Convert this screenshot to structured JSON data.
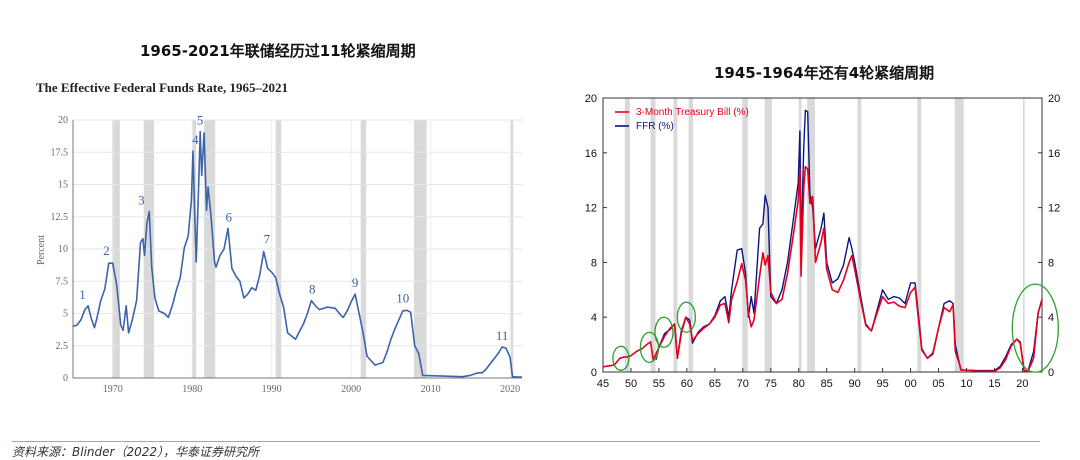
{
  "left_title": "1965-2021年联储经历过11轮紧缩周期",
  "right_title": "1945-1964年还有4轮紧缩周期",
  "source": "资料来源：Blinder（2022），华泰证券研究所",
  "colors": {
    "ffr_left": "#3d63a8",
    "tbill": "#e6001f",
    "ffr_right": "#0b1680",
    "recession": "#d9d9d9",
    "highlight": "#2ca02c"
  },
  "chart_data": [
    {
      "type": "line",
      "title": "The Effective Federal Funds Rate, 1965–2021",
      "ylabel": "Percent",
      "xlim": [
        1965,
        2021.5
      ],
      "ylim": [
        0,
        20
      ],
      "x_ticks": [
        "1970",
        "1980",
        "1990",
        "2000",
        "2010",
        "2020"
      ],
      "y_ticks": [
        "0",
        "2.5",
        "5",
        "7.5",
        "10",
        "12.5",
        "15",
        "17.5",
        "20"
      ],
      "grid": true,
      "recessions": [
        [
          1969.9,
          1970.9
        ],
        [
          1973.9,
          1975.2
        ],
        [
          1980.0,
          1980.5
        ],
        [
          1981.5,
          1982.9
        ],
        [
          1990.5,
          1991.2
        ],
        [
          2001.2,
          2001.9
        ],
        [
          2007.9,
          2009.5
        ],
        [
          2020.1,
          2020.4
        ]
      ],
      "cycle_labels": [
        {
          "label": "1",
          "x": 1966.2,
          "y": 5.6
        },
        {
          "label": "2",
          "x": 1969.2,
          "y": 9.0
        },
        {
          "label": "3",
          "x": 1973.6,
          "y": 12.9
        },
        {
          "label": "4",
          "x": 1980.4,
          "y": 17.6
        },
        {
          "label": "5",
          "x": 1981.0,
          "y": 19.1
        },
        {
          "label": "6",
          "x": 1984.6,
          "y": 11.6
        },
        {
          "label": "7",
          "x": 1989.4,
          "y": 9.9
        },
        {
          "label": "8",
          "x": 1995.1,
          "y": 6.0
        },
        {
          "label": "9",
          "x": 2000.5,
          "y": 6.5
        },
        {
          "label": "10",
          "x": 2006.5,
          "y": 5.3
        },
        {
          "label": "11",
          "x": 2019.0,
          "y": 2.4
        }
      ],
      "series": [
        {
          "x": [
            1965,
            1965.5,
            1966,
            1966.5,
            1966.9,
            1967.3,
            1967.7,
            1968,
            1968.5,
            1969,
            1969.5,
            1970,
            1970.5,
            1971,
            1971.3,
            1971.7,
            1972,
            1972.5,
            1973,
            1973.5,
            1973.8,
            1974,
            1974.3,
            1974.6,
            1974.9,
            1975.3,
            1975.8,
            1976.5,
            1977,
            1977.5,
            1978,
            1978.5,
            1979,
            1979.5,
            1979.9,
            1980.1,
            1980.3,
            1980.5,
            1980.8,
            1981,
            1981.2,
            1981.5,
            1981.8,
            1982,
            1982.4,
            1982.8,
            1983,
            1983.5,
            1984,
            1984.5,
            1985,
            1985.5,
            1986,
            1986.5,
            1987,
            1987.5,
            1988,
            1988.5,
            1989,
            1989.5,
            1990,
            1990.5,
            1991,
            1991.5,
            1992,
            1993,
            1994,
            1994.5,
            1995,
            1995.5,
            1996,
            1997,
            1998,
            1998.8,
            1999,
            1999.5,
            2000,
            2000.5,
            2001,
            2001.5,
            2002,
            2003,
            2004,
            2004.5,
            2005,
            2005.5,
            2006,
            2006.5,
            2007,
            2007.5,
            2008,
            2008.5,
            2009,
            2010,
            2012,
            2014,
            2015,
            2016,
            2016.5,
            2017,
            2017.5,
            2018,
            2018.5,
            2019,
            2019.5,
            2020,
            2020.3,
            2021,
            2021.5
          ],
          "y": [
            4.0,
            4.1,
            4.5,
            5.3,
            5.6,
            4.6,
            3.9,
            4.6,
            6.0,
            6.9,
            8.9,
            8.9,
            7.2,
            4.1,
            3.7,
            5.6,
            3.5,
            4.6,
            6.0,
            10.5,
            10.8,
            9.5,
            12.0,
            12.9,
            8.6,
            6.2,
            5.2,
            5.0,
            4.7,
            5.6,
            6.8,
            7.8,
            10.1,
            11.0,
            13.8,
            17.6,
            13.0,
            9.0,
            14.8,
            19.1,
            15.7,
            19.0,
            13.0,
            14.8,
            12.3,
            9.0,
            8.6,
            9.5,
            10.0,
            11.6,
            8.5,
            7.9,
            7.5,
            6.2,
            6.5,
            7.0,
            6.8,
            8.0,
            9.8,
            8.5,
            8.2,
            7.8,
            6.5,
            5.5,
            3.5,
            3.0,
            4.2,
            5.0,
            6.0,
            5.6,
            5.3,
            5.5,
            5.4,
            4.8,
            4.7,
            5.2,
            5.9,
            6.5,
            5.0,
            3.5,
            1.7,
            1.0,
            1.2,
            2.0,
            3.0,
            3.8,
            4.5,
            5.2,
            5.25,
            5.1,
            2.5,
            1.9,
            0.2,
            0.18,
            0.14,
            0.1,
            0.2,
            0.4,
            0.4,
            0.7,
            1.1,
            1.5,
            1.9,
            2.4,
            2.3,
            1.6,
            0.1,
            0.08,
            0.08
          ]
        }
      ]
    },
    {
      "type": "line",
      "title": "",
      "xlim": [
        1945,
        2023.5
      ],
      "ylim": [
        0,
        20
      ],
      "x_ticks": [
        "45",
        "50",
        "55",
        "60",
        "65",
        "70",
        "75",
        "80",
        "85",
        "90",
        "95",
        "00",
        "05",
        "10",
        "15",
        "20"
      ],
      "y_ticks": [
        "0",
        "4",
        "8",
        "12",
        "16",
        "20"
      ],
      "y2_ticks": [
        "0",
        "4",
        "8",
        "12",
        "16",
        "20"
      ],
      "legend_position": "top-left",
      "recessions": [
        [
          1948.9,
          1949.8
        ],
        [
          1953.5,
          1954.4
        ],
        [
          1957.6,
          1958.3
        ],
        [
          1960.3,
          1961.1
        ],
        [
          1969.9,
          1970.9
        ],
        [
          1973.9,
          1975.2
        ],
        [
          1980.0,
          1980.5
        ],
        [
          1981.5,
          1982.9
        ],
        [
          1990.5,
          1991.2
        ],
        [
          2001.2,
          2001.9
        ],
        [
          2007.9,
          2009.5
        ],
        [
          2020.1,
          2020.4
        ]
      ],
      "series": [
        {
          "name": "3-Month Treasury Bill (%)",
          "x": [
            1945,
            1947,
            1948,
            1948.8,
            1949.5,
            1950,
            1951,
            1952,
            1952.8,
            1953.5,
            1954,
            1955,
            1956,
            1957,
            1957.8,
            1958.3,
            1959,
            1959.8,
            1960.5,
            1961,
            1962,
            1963,
            1964,
            1965,
            1966,
            1966.8,
            1967.5,
            1968,
            1969,
            1969.8,
            1970.5,
            1971,
            1971.5,
            1972,
            1973,
            1973.6,
            1974,
            1974.5,
            1975,
            1976,
            1977,
            1978,
            1979,
            1979.9,
            1980.2,
            1980.4,
            1980.9,
            1981.2,
            1981.6,
            1982,
            1982.5,
            1983,
            1984,
            1984.5,
            1985,
            1986,
            1987,
            1988,
            1989,
            1989.5,
            1990,
            1991,
            1992,
            1993,
            1994,
            1995,
            1996,
            1997,
            1998,
            1999,
            2000,
            2000.8,
            2001.5,
            2002,
            2003,
            2004,
            2005,
            2006,
            2007,
            2007.6,
            2008,
            2008.8,
            2009,
            2012,
            2015,
            2016,
            2017,
            2018,
            2019,
            2019.6,
            2020.3,
            2021,
            2022,
            2022.8,
            2023.5
          ],
          "y": [
            0.38,
            0.5,
            1.0,
            1.1,
            1.1,
            1.2,
            1.5,
            1.7,
            2.0,
            2.2,
            0.9,
            1.8,
            2.6,
            3.2,
            3.5,
            1.0,
            2.8,
            4.0,
            3.5,
            2.3,
            2.8,
            3.2,
            3.5,
            4.0,
            4.9,
            5.0,
            3.6,
            5.3,
            6.6,
            7.9,
            6.7,
            4.3,
            3.3,
            3.8,
            7.0,
            8.7,
            7.8,
            8.5,
            5.8,
            5.0,
            5.3,
            7.2,
            9.9,
            12.5,
            14.8,
            7.0,
            13.5,
            15.0,
            14.8,
            12.3,
            12.8,
            8.0,
            9.5,
            10.5,
            7.5,
            6.0,
            5.8,
            6.7,
            8.0,
            8.5,
            7.5,
            5.4,
            3.4,
            3.0,
            4.3,
            5.5,
            5.0,
            5.1,
            4.8,
            4.7,
            5.8,
            6.2,
            3.5,
            1.6,
            1.0,
            1.4,
            3.2,
            4.7,
            4.4,
            4.9,
            1.5,
            0.5,
            0.15,
            0.07,
            0.05,
            0.3,
            0.9,
            1.9,
            2.4,
            2.1,
            0.1,
            0.05,
            1.0,
            4.3,
            5.3
          ]
        },
        {
          "name": "FFR (%)",
          "x": [
            1954.5,
            1955,
            1956,
            1957,
            1957.8,
            1958.3,
            1959,
            1959.8,
            1960.5,
            1961,
            1962,
            1963,
            1964,
            1965,
            1966,
            1966.8,
            1967.5,
            1968,
            1969,
            1969.8,
            1970.5,
            1971,
            1971.5,
            1972,
            1973,
            1973.6,
            1974,
            1974.5,
            1975,
            1976,
            1977,
            1978,
            1979,
            1979.9,
            1980.2,
            1980.4,
            1980.9,
            1981.2,
            1981.6,
            1982,
            1982.5,
            1983,
            1984,
            1984.5,
            1985,
            1986,
            1987,
            1988,
            1989,
            1989.5,
            1990,
            1991,
            1992,
            1993,
            1994,
            1995,
            1996,
            1997,
            1998,
            1999,
            2000,
            2000.8,
            2001.5,
            2002,
            2003,
            2004,
            2005,
            2006,
            2007,
            2007.6,
            2008,
            2008.8,
            2009,
            2012,
            2015,
            2016,
            2017,
            2018,
            2019,
            2019.6,
            2020.3,
            2021,
            2022,
            2022.8,
            2023.5
          ],
          "y": [
            0.9,
            1.8,
            2.8,
            3.1,
            3.5,
            1.0,
            3.0,
            4.0,
            3.8,
            2.1,
            2.9,
            3.3,
            3.5,
            4.1,
            5.2,
            5.5,
            4.0,
            6.0,
            8.9,
            9.0,
            7.2,
            4.0,
            5.5,
            4.3,
            10.5,
            10.8,
            12.9,
            12.0,
            5.5,
            5.0,
            6.0,
            8.0,
            11.0,
            13.8,
            17.6,
            9.0,
            16.5,
            19.1,
            19.0,
            13.0,
            12.0,
            9.0,
            10.5,
            11.6,
            8.0,
            6.5,
            6.8,
            7.8,
            9.8,
            9.0,
            8.0,
            5.7,
            3.5,
            3.0,
            4.5,
            6.0,
            5.3,
            5.5,
            5.4,
            5.0,
            6.5,
            6.5,
            3.8,
            1.7,
            1.0,
            1.3,
            3.2,
            5.0,
            5.2,
            5.0,
            2.0,
            0.5,
            0.15,
            0.1,
            0.12,
            0.4,
            1.1,
            2.0,
            2.4,
            2.2,
            0.1,
            0.08,
            1.5,
            4.3,
            5.3
          ]
        }
      ],
      "highlights": [
        {
          "x": 1948.2,
          "y": 1.0
        },
        {
          "x": 1953.3,
          "y": 1.8
        },
        {
          "x": 1955.9,
          "y": 2.9
        },
        {
          "x": 1959.9,
          "y": 4.0
        },
        {
          "x": 2022.3,
          "y": 3.2
        }
      ]
    }
  ]
}
